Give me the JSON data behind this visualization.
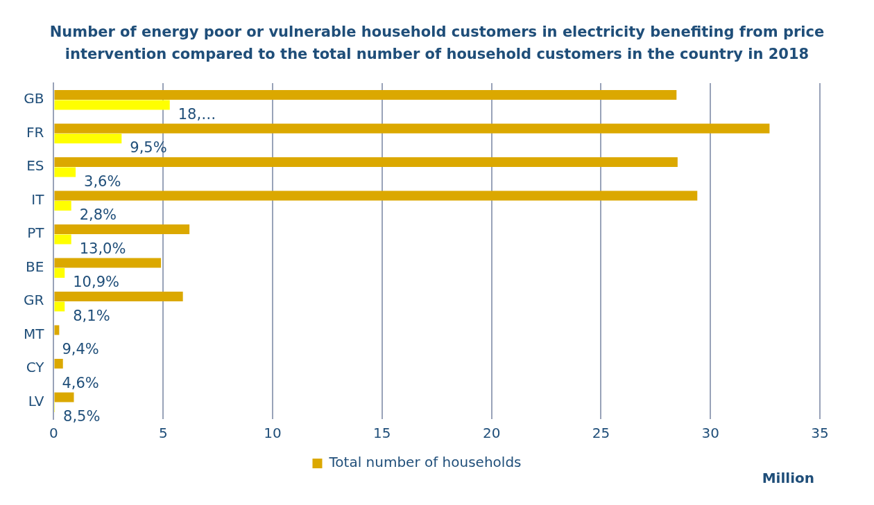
{
  "chart_data": {
    "type": "bar",
    "orientation": "horizontal",
    "title": "Number of energy poor or vulnerable household customers in electricity benefiting from price intervention compared to the total number of household customers in the country in 2018",
    "xlabel": "Million",
    "categories": [
      "GB",
      "FR",
      "ES",
      "IT",
      "PT",
      "BE",
      "GR",
      "MT",
      "CY",
      "LV"
    ],
    "series": [
      {
        "name": "Total number of households",
        "color": "#dba800",
        "values": [
          28.45,
          32.7,
          28.5,
          29.4,
          6.2,
          4.9,
          5.9,
          0.25,
          0.42,
          0.92
        ]
      },
      {
        "color": "#ffff00",
        "values": [
          5.3,
          3.1,
          1.0,
          0.8,
          0.8,
          0.5,
          0.5,
          0,
          0,
          0.05
        ]
      }
    ],
    "annotations": [
      {
        "text": "18,…",
        "x": 5.3,
        "y": "GB"
      },
      {
        "text": "9,5%",
        "x": 3.1,
        "y": "FR"
      },
      {
        "text": "3,6%",
        "x": 1.0,
        "y": "ES"
      },
      {
        "text": "2,8%",
        "x": 0.8,
        "y": "IT"
      },
      {
        "text": "13,0%",
        "x": 0.8,
        "y": "PT"
      },
      {
        "text": "10,9%",
        "x": 0.5,
        "y": "BE"
      },
      {
        "text": "8,1%",
        "x": 0.5,
        "y": "GR"
      },
      {
        "text": "9,4%",
        "x": 0,
        "y": "MT"
      },
      {
        "text": "4,6%",
        "x": 0,
        "y": "CY"
      },
      {
        "text": "8,5%",
        "x": 0.05,
        "y": "LV"
      }
    ],
    "xlim": [
      0,
      35
    ],
    "xticks": [
      0,
      5,
      10,
      15,
      20,
      25,
      30,
      35
    ],
    "grid": "x",
    "legend": "bottom"
  }
}
